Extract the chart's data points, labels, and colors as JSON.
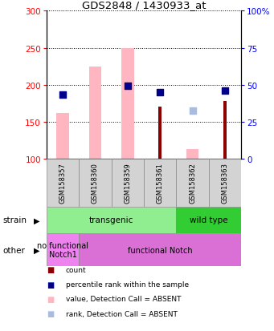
{
  "title": "GDS2848 / 1430933_at",
  "samples": [
    "GSM158357",
    "GSM158360",
    "GSM158359",
    "GSM158361",
    "GSM158362",
    "GSM158363"
  ],
  "ylim_left": [
    100,
    300
  ],
  "ylim_right": [
    0,
    100
  ],
  "yticks_left": [
    100,
    150,
    200,
    250,
    300
  ],
  "yticks_right": [
    0,
    25,
    50,
    75,
    100
  ],
  "ytick_labels_right": [
    "0",
    "25",
    "50",
    "75",
    "100%"
  ],
  "bar_values": [
    null,
    null,
    null,
    170,
    null,
    178
  ],
  "bar_color": "#8B0000",
  "pink_bar_values": [
    162,
    224,
    250,
    null,
    113,
    null
  ],
  "pink_bar_color": "#FFB6C1",
  "blue_square_values": [
    187,
    null,
    199,
    190,
    null,
    192
  ],
  "blue_square_color": "#00008B",
  "light_blue_square_values": [
    null,
    null,
    null,
    null,
    165,
    null
  ],
  "light_blue_square_color": "#AABBDD",
  "strain_groups": [
    {
      "label": "transgenic",
      "start": 0,
      "end": 4,
      "color": "#90EE90"
    },
    {
      "label": "wild type",
      "start": 4,
      "end": 6,
      "color": "#32CD32"
    }
  ],
  "other_groups": [
    {
      "label": "no functional\nNotch1",
      "start": 0,
      "end": 1,
      "color": "#EE82EE"
    },
    {
      "label": "functional Notch",
      "start": 1,
      "end": 6,
      "color": "#DA70D6"
    }
  ],
  "strain_label": "strain",
  "other_label": "other",
  "legend_items": [
    {
      "color": "#8B0000",
      "label": "count"
    },
    {
      "color": "#00008B",
      "label": "percentile rank within the sample"
    },
    {
      "color": "#FFB6C1",
      "label": "value, Detection Call = ABSENT"
    },
    {
      "color": "#AABBDD",
      "label": "rank, Detection Call = ABSENT"
    }
  ]
}
